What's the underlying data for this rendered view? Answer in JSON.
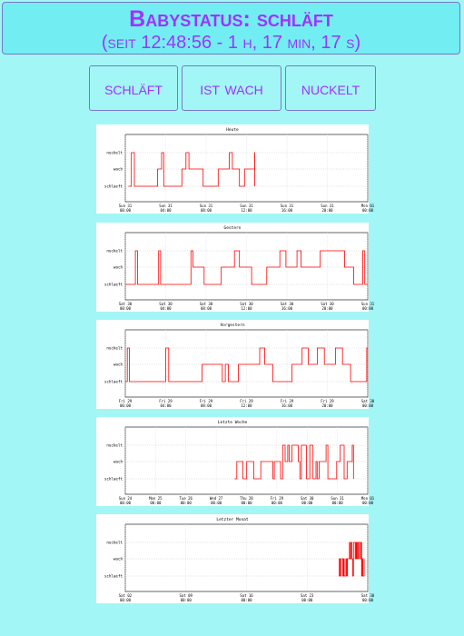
{
  "header": {
    "status": "Babystatus: schläft",
    "since": "(seit 12:48:56 - 1 h, 17 min, 17 s)"
  },
  "buttons": [
    "schläft",
    "ist wach",
    "nuckelt"
  ],
  "colors": {
    "background": "#a3f6f6",
    "header": "#72eef2",
    "accent": "#a033ff",
    "series": "#ff0000"
  },
  "chart_data": [
    {
      "type": "line",
      "title": "Heute",
      "y_categories": [
        "schlaeft",
        "wach",
        "nuckelt"
      ],
      "x_ticks": [
        [
          "Sun 31",
          "00:00"
        ],
        [
          "Sun 31",
          "04:00"
        ],
        [
          "Sun 31",
          "08:00"
        ],
        [
          "Sun 31",
          "12:00"
        ],
        [
          "Sun 31",
          "16:00"
        ],
        [
          "Sun 31",
          "20:00"
        ],
        [
          "Mon 01",
          "00:00"
        ]
      ],
      "x_range_hours": [
        0,
        24
      ],
      "steps": [
        [
          0.3,
          0
        ],
        [
          0.6,
          2
        ],
        [
          0.9,
          0
        ],
        [
          3.2,
          1
        ],
        [
          3.6,
          2
        ],
        [
          3.8,
          0
        ],
        [
          5.6,
          1
        ],
        [
          6.0,
          2
        ],
        [
          6.3,
          1
        ],
        [
          7.7,
          0
        ],
        [
          8.9,
          0
        ],
        [
          9.2,
          1
        ],
        [
          10.3,
          2
        ],
        [
          10.6,
          1
        ],
        [
          11.3,
          0
        ],
        [
          11.8,
          1
        ],
        [
          12.4,
          1
        ],
        [
          12.8,
          2
        ],
        [
          12.81,
          0
        ]
      ],
      "end_hour": 12.81
    },
    {
      "type": "line",
      "title": "Gestern",
      "y_categories": [
        "schlaeft",
        "wach",
        "nuckelt"
      ],
      "x_ticks": [
        [
          "Sat 30",
          "00:00"
        ],
        [
          "Sat 30",
          "04:00"
        ],
        [
          "Sat 30",
          "08:00"
        ],
        [
          "Sat 30",
          "12:00"
        ],
        [
          "Sat 30",
          "16:00"
        ],
        [
          "Sat 30",
          "20:00"
        ],
        [
          "Sun 31",
          "00:00"
        ]
      ],
      "x_range_hours": [
        0,
        24
      ],
      "steps": [
        [
          0,
          0
        ],
        [
          1.0,
          2
        ],
        [
          1.2,
          0
        ],
        [
          3.3,
          2
        ],
        [
          3.5,
          0
        ],
        [
          6.5,
          2
        ],
        [
          6.7,
          1
        ],
        [
          7.8,
          0
        ],
        [
          9.5,
          1
        ],
        [
          10.8,
          2
        ],
        [
          11.3,
          1
        ],
        [
          12.5,
          0
        ],
        [
          14.0,
          1
        ],
        [
          15.3,
          2
        ],
        [
          15.9,
          1
        ],
        [
          17.0,
          2
        ],
        [
          17.4,
          1
        ],
        [
          19.3,
          2
        ],
        [
          21.7,
          1
        ],
        [
          22.6,
          0
        ],
        [
          23.5,
          2
        ],
        [
          23.7,
          0
        ]
      ],
      "end_hour": 24
    },
    {
      "type": "line",
      "title": "Vorgestern",
      "y_categories": [
        "schlaeft",
        "wach",
        "nuckelt"
      ],
      "x_ticks": [
        [
          "Fri 29",
          "00:00"
        ],
        [
          "Fri 29",
          "04:00"
        ],
        [
          "Fri 29",
          "08:00"
        ],
        [
          "Fri 29",
          "12:00"
        ],
        [
          "Fri 29",
          "16:00"
        ],
        [
          "Fri 29",
          "20:00"
        ],
        [
          "Sat 30",
          "00:00"
        ]
      ],
      "x_range_hours": [
        0,
        24
      ],
      "steps": [
        [
          0,
          0
        ],
        [
          0.2,
          2
        ],
        [
          0.4,
          0
        ],
        [
          4.0,
          2
        ],
        [
          4.3,
          0
        ],
        [
          7.6,
          1
        ],
        [
          9.6,
          0
        ],
        [
          9.9,
          1
        ],
        [
          10.2,
          0
        ],
        [
          11.2,
          1
        ],
        [
          13.3,
          2
        ],
        [
          13.8,
          1
        ],
        [
          14.6,
          0
        ],
        [
          16.5,
          1
        ],
        [
          17.5,
          2
        ],
        [
          18.1,
          1
        ],
        [
          19.0,
          2
        ],
        [
          19.7,
          1
        ],
        [
          20.8,
          2
        ],
        [
          21.5,
          1
        ],
        [
          22.3,
          0
        ],
        [
          23.9,
          2
        ]
      ],
      "end_hour": 24
    },
    {
      "type": "line",
      "title": "Letzte Woche",
      "y_categories": [
        "schlaeft",
        "wach",
        "nuckelt"
      ],
      "x_ticks": [
        [
          "Sun 24",
          "00:00"
        ],
        [
          "Mon 25",
          "00:00"
        ],
        [
          "Tue 26",
          "00:00"
        ],
        [
          "Wed 27",
          "00:00"
        ],
        [
          "Thu 28",
          "00:00"
        ],
        [
          "Fri 29",
          "00:00"
        ],
        [
          "Sat 30",
          "00:00"
        ],
        [
          "Sun 31",
          "00:00"
        ],
        [
          "Mon 01",
          "00:00"
        ]
      ],
      "x_range_days": [
        0,
        8
      ],
      "dense_from_day": 3.6,
      "dense_nuckelt_from_day": 4.9,
      "end_day": 7.53
    },
    {
      "type": "line",
      "title": "Letzter Monat",
      "y_categories": [
        "schlaeft",
        "wach",
        "nuckelt"
      ],
      "x_ticks": [
        [
          "Sat 02",
          "00:00"
        ],
        [
          "Sat 09",
          "00:00"
        ],
        [
          "Sat 16",
          "00:00"
        ],
        [
          "Sat 23",
          "00:00"
        ],
        [
          "Sat 30",
          "00:00"
        ]
      ],
      "x_range_days": [
        0,
        31
      ],
      "dense_from_day": 27.3,
      "dense_nuckelt_from_day": 28.5,
      "end_day": 30.53
    }
  ]
}
